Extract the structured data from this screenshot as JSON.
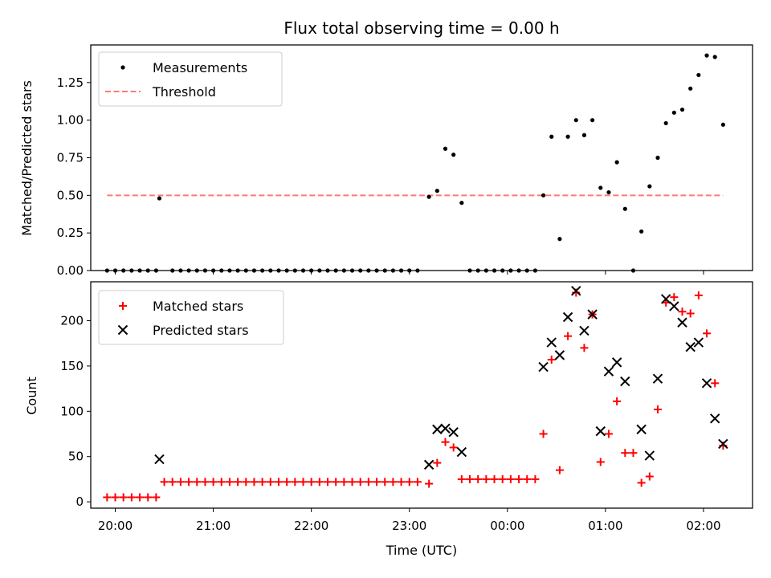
{
  "chart_data": [
    {
      "type": "scatter",
      "title": "Flux total observing time = 0.00 h",
      "xlabel": "",
      "ylabel": "Matched/Predicted stars",
      "xlim": [
        "19:45",
        "02:30"
      ],
      "ylim": [
        0,
        1.5
      ],
      "yticks": [
        "0.00",
        "0.25",
        "0.50",
        "0.75",
        "1.00",
        "1.25"
      ],
      "grid": false,
      "legend_location": "upper left",
      "legend": [
        {
          "label": "Measurements",
          "marker": "dot"
        },
        {
          "label": "Threshold",
          "marker": "dashed-line"
        }
      ],
      "series": [
        {
          "name": "Measurements",
          "color": "#000000",
          "points": [
            [
              "19:55",
              0
            ],
            [
              "20:00",
              0
            ],
            [
              "20:05",
              0
            ],
            [
              "20:10",
              0
            ],
            [
              "20:15",
              0
            ],
            [
              "20:20",
              0
            ],
            [
              "20:25",
              0
            ],
            [
              "20:27",
              0.48
            ],
            [
              "20:35",
              0
            ],
            [
              "20:40",
              0
            ],
            [
              "20:45",
              0
            ],
            [
              "20:50",
              0
            ],
            [
              "20:55",
              0
            ],
            [
              "21:00",
              0
            ],
            [
              "21:05",
              0
            ],
            [
              "21:10",
              0
            ],
            [
              "21:15",
              0
            ],
            [
              "21:20",
              0
            ],
            [
              "21:25",
              0
            ],
            [
              "21:30",
              0
            ],
            [
              "21:35",
              0
            ],
            [
              "21:40",
              0
            ],
            [
              "21:45",
              0
            ],
            [
              "21:50",
              0
            ],
            [
              "21:55",
              0
            ],
            [
              "22:00",
              0
            ],
            [
              "22:05",
              0
            ],
            [
              "22:10",
              0
            ],
            [
              "22:15",
              0
            ],
            [
              "22:20",
              0
            ],
            [
              "22:25",
              0
            ],
            [
              "22:30",
              0
            ],
            [
              "22:35",
              0
            ],
            [
              "22:40",
              0
            ],
            [
              "22:45",
              0
            ],
            [
              "22:50",
              0
            ],
            [
              "22:55",
              0
            ],
            [
              "23:00",
              0
            ],
            [
              "23:05",
              0
            ],
            [
              "23:12",
              0.49
            ],
            [
              "23:17",
              0.53
            ],
            [
              "23:22",
              0.81
            ],
            [
              "23:27",
              0.77
            ],
            [
              "23:32",
              0.45
            ],
            [
              "23:37",
              0
            ],
            [
              "23:42",
              0
            ],
            [
              "23:47",
              0
            ],
            [
              "23:52",
              0
            ],
            [
              "23:57",
              0
            ],
            [
              "00:02",
              0
            ],
            [
              "00:07",
              0
            ],
            [
              "00:12",
              0
            ],
            [
              "00:17",
              0
            ],
            [
              "00:22",
              0.5
            ],
            [
              "00:27",
              0.89
            ],
            [
              "00:32",
              0.21
            ],
            [
              "00:37",
              0.89
            ],
            [
              "00:42",
              1.0
            ],
            [
              "00:47",
              0.9
            ],
            [
              "00:52",
              1.0
            ],
            [
              "00:57",
              0.55
            ],
            [
              "01:02",
              0.52
            ],
            [
              "01:07",
              0.72
            ],
            [
              "01:12",
              0.41
            ],
            [
              "01:17",
              0
            ],
            [
              "01:22",
              0.26
            ],
            [
              "01:27",
              0.56
            ],
            [
              "01:32",
              0.75
            ],
            [
              "01:37",
              0.98
            ],
            [
              "01:42",
              1.05
            ],
            [
              "01:47",
              1.07
            ],
            [
              "01:52",
              1.21
            ],
            [
              "01:57",
              1.3
            ],
            [
              "02:02",
              1.43
            ],
            [
              "02:07",
              1.42
            ],
            [
              "02:12",
              0.97
            ]
          ]
        },
        {
          "name": "Threshold",
          "color": "#ff7777",
          "points": [
            [
              "19:55",
              0.5
            ],
            [
              "02:12",
              0.5
            ]
          ]
        }
      ]
    },
    {
      "type": "scatter",
      "title": "",
      "xlabel": "Time (UTC)",
      "ylabel": "Count",
      "xlim": [
        "19:45",
        "02:30"
      ],
      "ylim": [
        -7,
        243
      ],
      "xticks": [
        "20:00",
        "21:00",
        "22:00",
        "23:00",
        "00:00",
        "01:00",
        "02:00"
      ],
      "yticks": [
        "0",
        "50",
        "100",
        "150",
        "200"
      ],
      "grid": false,
      "legend_location": "upper left",
      "legend": [
        {
          "label": "Matched stars",
          "marker": "plus"
        },
        {
          "label": "Predicted stars",
          "marker": "x"
        }
      ],
      "series": [
        {
          "name": "Matched stars",
          "color": "#ff0000",
          "points": [
            [
              "19:55",
              5
            ],
            [
              "20:00",
              5
            ],
            [
              "20:05",
              5
            ],
            [
              "20:10",
              5
            ],
            [
              "20:15",
              5
            ],
            [
              "20:20",
              5
            ],
            [
              "20:25",
              5
            ],
            [
              "20:30",
              22
            ],
            [
              "20:35",
              22
            ],
            [
              "20:40",
              22
            ],
            [
              "20:45",
              22
            ],
            [
              "20:50",
              22
            ],
            [
              "20:55",
              22
            ],
            [
              "21:00",
              22
            ],
            [
              "21:05",
              22
            ],
            [
              "21:10",
              22
            ],
            [
              "21:15",
              22
            ],
            [
              "21:20",
              22
            ],
            [
              "21:25",
              22
            ],
            [
              "21:30",
              22
            ],
            [
              "21:35",
              22
            ],
            [
              "21:40",
              22
            ],
            [
              "21:45",
              22
            ],
            [
              "21:50",
              22
            ],
            [
              "21:55",
              22
            ],
            [
              "22:00",
              22
            ],
            [
              "22:05",
              22
            ],
            [
              "22:10",
              22
            ],
            [
              "22:15",
              22
            ],
            [
              "22:20",
              22
            ],
            [
              "22:25",
              22
            ],
            [
              "22:30",
              22
            ],
            [
              "22:35",
              22
            ],
            [
              "22:40",
              22
            ],
            [
              "22:45",
              22
            ],
            [
              "22:50",
              22
            ],
            [
              "22:55",
              22
            ],
            [
              "23:00",
              22
            ],
            [
              "23:05",
              22
            ],
            [
              "23:12",
              20
            ],
            [
              "23:17",
              43
            ],
            [
              "23:22",
              66
            ],
            [
              "23:27",
              60
            ],
            [
              "23:32",
              25
            ],
            [
              "23:37",
              25
            ],
            [
              "23:42",
              25
            ],
            [
              "23:47",
              25
            ],
            [
              "23:52",
              25
            ],
            [
              "23:57",
              25
            ],
            [
              "00:02",
              25
            ],
            [
              "00:07",
              25
            ],
            [
              "00:12",
              25
            ],
            [
              "00:17",
              25
            ],
            [
              "00:22",
              75
            ],
            [
              "00:27",
              157
            ],
            [
              "00:32",
              35
            ],
            [
              "00:37",
              183
            ],
            [
              "00:42",
              231
            ],
            [
              "00:47",
              170
            ],
            [
              "00:52",
              207
            ],
            [
              "00:57",
              44
            ],
            [
              "01:02",
              75
            ],
            [
              "01:07",
              111
            ],
            [
              "01:12",
              54
            ],
            [
              "01:17",
              54
            ],
            [
              "01:22",
              21
            ],
            [
              "01:27",
              28
            ],
            [
              "01:32",
              102
            ],
            [
              "01:37",
              220
            ],
            [
              "01:42",
              226
            ],
            [
              "01:47",
              210
            ],
            [
              "01:52",
              208
            ],
            [
              "01:57",
              228
            ],
            [
              "02:02",
              186
            ],
            [
              "02:07",
              131
            ],
            [
              "02:12",
              62
            ]
          ]
        },
        {
          "name": "Predicted stars",
          "color": "#000000",
          "points": [
            [
              "20:27",
              47
            ],
            [
              "23:12",
              41
            ],
            [
              "23:17",
              80
            ],
            [
              "23:22",
              81
            ],
            [
              "23:27",
              77
            ],
            [
              "23:32",
              55
            ],
            [
              "00:22",
              149
            ],
            [
              "00:27",
              176
            ],
            [
              "00:32",
              162
            ],
            [
              "00:37",
              204
            ],
            [
              "00:42",
              233
            ],
            [
              "00:47",
              189
            ],
            [
              "00:52",
              207
            ],
            [
              "00:57",
              78
            ],
            [
              "01:02",
              144
            ],
            [
              "01:07",
              154
            ],
            [
              "01:12",
              133
            ],
            [
              "01:22",
              80
            ],
            [
              "01:27",
              51
            ],
            [
              "01:32",
              136
            ],
            [
              "01:37",
              224
            ],
            [
              "01:42",
              216
            ],
            [
              "01:47",
              198
            ],
            [
              "01:52",
              171
            ],
            [
              "01:57",
              176
            ],
            [
              "02:02",
              131
            ],
            [
              "02:07",
              92
            ],
            [
              "02:12",
              64
            ]
          ]
        }
      ]
    }
  ]
}
